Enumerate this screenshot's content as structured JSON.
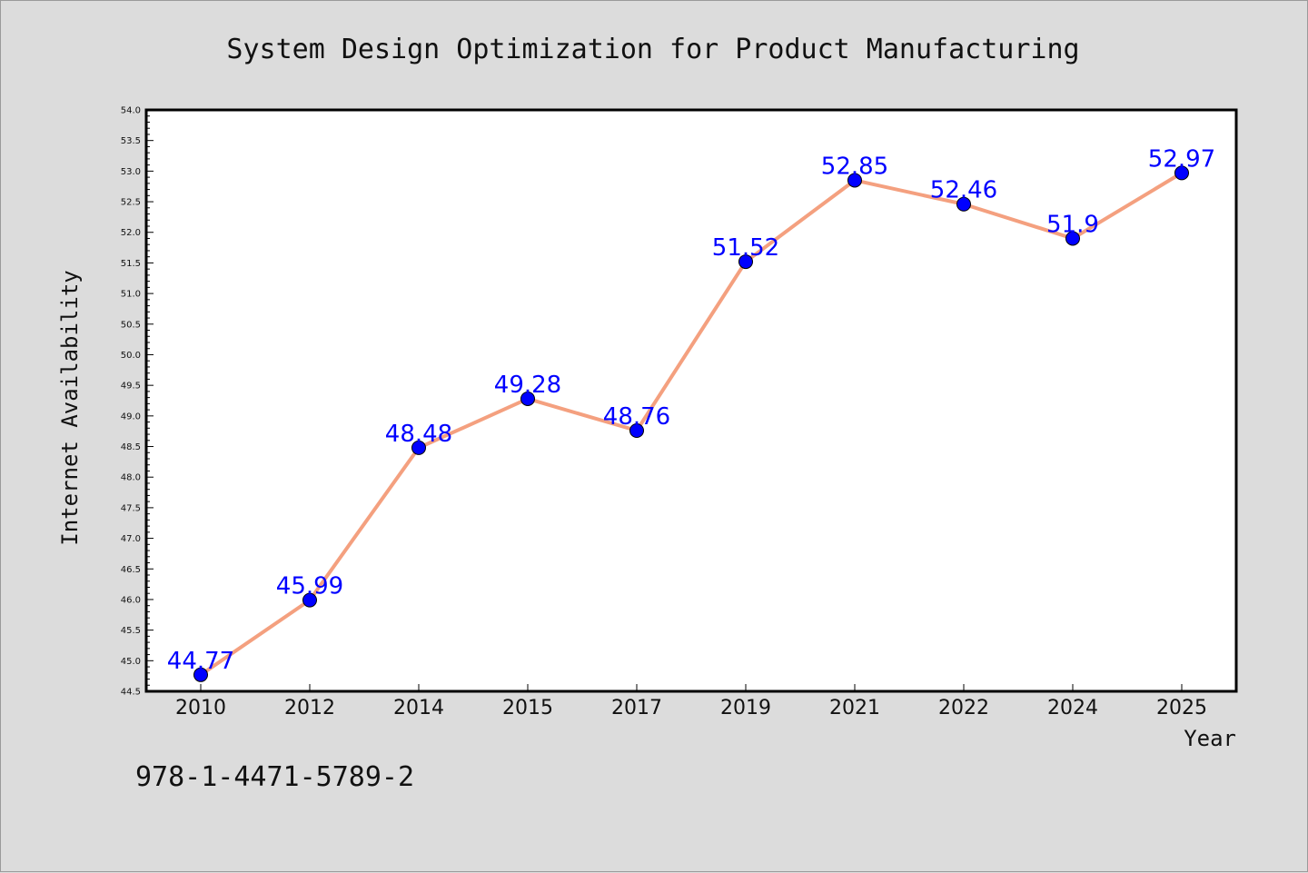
{
  "chart_data": {
    "type": "line",
    "title": "System Design Optimization for Product Manufacturing",
    "xlabel": "Year",
    "ylabel": "Internet Availability",
    "categories": [
      "2010",
      "2012",
      "2014",
      "2015",
      "2017",
      "2019",
      "2021",
      "2022",
      "2024",
      "2025"
    ],
    "values": [
      44.77,
      45.99,
      48.48,
      49.28,
      48.76,
      51.52,
      52.85,
      52.46,
      51.9,
      52.97
    ],
    "data_labels": [
      "44.77",
      "45.99",
      "48.48",
      "49.28",
      "48.76",
      "51.52",
      "52.85",
      "52.46",
      "51.9",
      "52.97"
    ],
    "ylim": [
      44.5,
      54.0
    ],
    "yticks": [
      "44.5",
      "45.0",
      "45.5",
      "46.0",
      "46.5",
      "47.0",
      "47.5",
      "48.0",
      "48.5",
      "49.0",
      "49.5",
      "50.0",
      "50.5",
      "51.0",
      "51.5",
      "52.0",
      "52.5",
      "53.0",
      "53.5",
      "54.0"
    ],
    "grid": false,
    "line_color": "#f4a07f",
    "marker_color": "#0000ff",
    "label_color": "#0000ff"
  },
  "annotation": {
    "isbn": "978-1-4471-5789-2"
  }
}
